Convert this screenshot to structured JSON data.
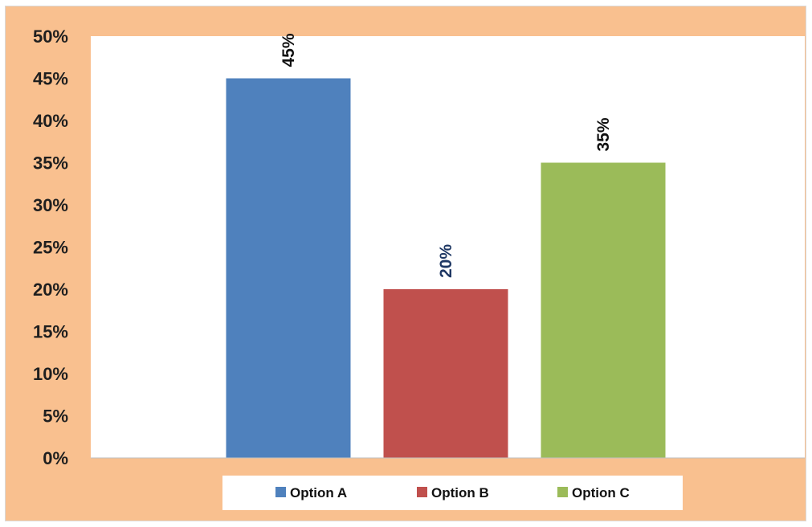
{
  "chart_data": {
    "type": "bar",
    "categories": [
      "Option A",
      "Option B",
      "Option C"
    ],
    "values": [
      45,
      20,
      35
    ],
    "data_labels": [
      "45%",
      "20%",
      "35%"
    ],
    "colors": [
      "#4f81bd",
      "#c0504d",
      "#9bbb59"
    ],
    "label_colors": [
      "#111111",
      "#1f3864",
      "#111111"
    ],
    "ylim": [
      0,
      50
    ],
    "yticks": [
      0,
      5,
      10,
      15,
      20,
      25,
      30,
      35,
      40,
      45,
      50
    ],
    "ytick_labels": [
      "0%",
      "5%",
      "10%",
      "15%",
      "20%",
      "25%",
      "30%",
      "35%",
      "40%",
      "45%",
      "50%"
    ],
    "title": "",
    "xlabel": "",
    "ylabel": "",
    "grid": false,
    "legend_position": "bottom",
    "legend": [
      "Option A",
      "Option B",
      "Option C"
    ],
    "background_color": "#f9c08f",
    "plot_background_color": "#ffffff"
  }
}
